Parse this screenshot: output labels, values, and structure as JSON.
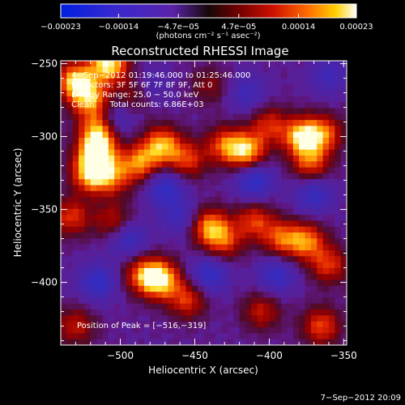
{
  "chart_data": {
    "type": "heatmap",
    "title": "Reconstructed RHESSI Image",
    "xlabel": "Heliocentric X (arcsec)",
    "ylabel": "Heliocentric Y (arcsec)",
    "xlim": [
      -540,
      -348
    ],
    "ylim": [
      -443,
      -248
    ],
    "x_ticks": [
      -500,
      -450,
      -400,
      -350
    ],
    "x_tick_labels": [
      "−500",
      "−450",
      "−400",
      "−350"
    ],
    "y_ticks": [
      -250,
      -300,
      -350,
      -400
    ],
    "y_tick_labels": [
      "−250",
      "−300",
      "−350",
      "−400"
    ],
    "colorbar": {
      "range": [
        -0.00023,
        0.00023
      ],
      "ticks": [
        -0.00023,
        -0.00014,
        -4.7e-05,
        4.7e-05,
        0.00014,
        0.00023
      ],
      "tick_labels": [
        "−0.00023",
        "−0.00014",
        "−4.7e−05",
        "4.7e−05",
        "0.00014",
        "0.00023"
      ],
      "unit_label": "(photons cm⁻² s⁻¹ asec⁻²)",
      "colormap": "rainbow-to-hot"
    },
    "annotations": [
      "4−Sep−2012 01:19:46.000 to 01:25:46.000",
      "Detectors: 3F 5F 6F 7F 8F 9F, Att 0",
      "Energy Range: 25.0 − 50.0 keV",
      "Clean      Total counts: 6.86E+03"
    ],
    "peak_label": "Position of Peak = [−516,−319]",
    "peak": [
      -516,
      -319
    ],
    "blobs": [
      {
        "x": -530,
        "y": -262,
        "v": 0.9
      },
      {
        "x": -520,
        "y": -275,
        "v": 0.75
      },
      {
        "x": -508,
        "y": -250,
        "v": 1.0
      },
      {
        "x": -514,
        "y": -296,
        "v": 0.9
      },
      {
        "x": -516,
        "y": -312,
        "v": 1.0
      },
      {
        "x": -520,
        "y": -326,
        "v": 0.8
      },
      {
        "x": -505,
        "y": -328,
        "v": 0.55
      },
      {
        "x": -487,
        "y": -318,
        "v": 0.7
      },
      {
        "x": -472,
        "y": -306,
        "v": 0.8
      },
      {
        "x": -455,
        "y": -316,
        "v": 0.55
      },
      {
        "x": -430,
        "y": -306,
        "v": 0.6
      },
      {
        "x": -415,
        "y": -310,
        "v": 0.85
      },
      {
        "x": -400,
        "y": -292,
        "v": 0.5
      },
      {
        "x": -378,
        "y": -300,
        "v": 0.9
      },
      {
        "x": -363,
        "y": -298,
        "v": 0.6
      },
      {
        "x": -372,
        "y": -318,
        "v": 0.6
      },
      {
        "x": -533,
        "y": -355,
        "v": 0.55
      },
      {
        "x": -505,
        "y": -358,
        "v": 0.45
      },
      {
        "x": -485,
        "y": -395,
        "v": 0.6
      },
      {
        "x": -473,
        "y": -398,
        "v": 0.95
      },
      {
        "x": -455,
        "y": -412,
        "v": 0.55
      },
      {
        "x": -440,
        "y": -362,
        "v": 0.75
      },
      {
        "x": -430,
        "y": -372,
        "v": 0.5
      },
      {
        "x": -410,
        "y": -358,
        "v": 0.55
      },
      {
        "x": -392,
        "y": -370,
        "v": 0.6
      },
      {
        "x": -375,
        "y": -372,
        "v": 0.7
      },
      {
        "x": -360,
        "y": -388,
        "v": 0.55
      },
      {
        "x": -405,
        "y": -420,
        "v": 0.45
      },
      {
        "x": -365,
        "y": -430,
        "v": 0.6
      },
      {
        "x": -530,
        "y": -430,
        "v": 0.45
      },
      {
        "x": -490,
        "y": -270,
        "v": 0.35
      },
      {
        "x": -440,
        "y": -265,
        "v": 0.3
      },
      {
        "x": -515,
        "y": -400,
        "v": -0.5
      },
      {
        "x": -495,
        "y": -370,
        "v": -0.45
      },
      {
        "x": -470,
        "y": -335,
        "v": -0.5
      },
      {
        "x": -410,
        "y": -330,
        "v": -0.55
      },
      {
        "x": -370,
        "y": -340,
        "v": -0.45
      },
      {
        "x": -505,
        "y": -290,
        "v": -0.45
      },
      {
        "x": -440,
        "y": -395,
        "v": -0.5
      },
      {
        "x": -395,
        "y": -395,
        "v": -0.45
      },
      {
        "x": -360,
        "y": -258,
        "v": -0.35
      },
      {
        "x": -415,
        "y": -270,
        "v": -0.35
      },
      {
        "x": -460,
        "y": -355,
        "v": -0.35
      },
      {
        "x": -480,
        "y": -265,
        "v": -0.3
      }
    ]
  },
  "footer": {
    "date": "7−Sep−2012 20:09"
  }
}
